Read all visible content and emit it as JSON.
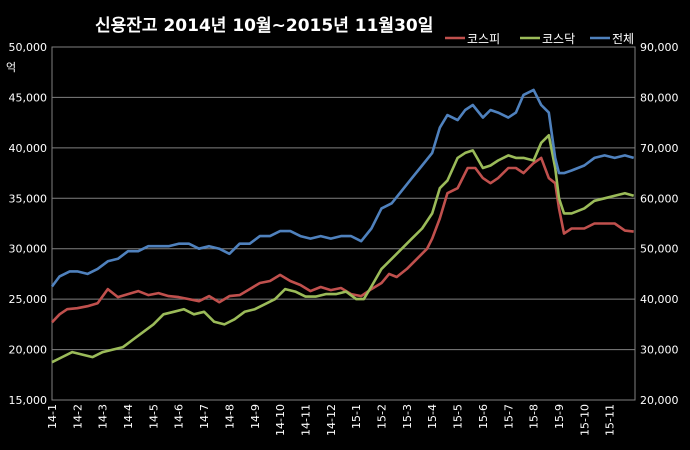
{
  "chart_data": {
    "type": "line",
    "title": "신용잔고  2014년 10월~2015년 11월30일",
    "y_unit_label": "억",
    "y_left": {
      "min": 15000,
      "max": 50000,
      "step": 5000,
      "tick_labels": [
        "15,000",
        "20,000",
        "25,000",
        "30,000",
        "35,000",
        "40,000",
        "45,000",
        "50,000"
      ]
    },
    "y_right": {
      "min": 20000,
      "max": 90000,
      "step": 10000,
      "tick_labels": [
        "20,000",
        "30,000",
        "40,000",
        "50,000",
        "60,000",
        "70,000",
        "80,000",
        "90,000"
      ]
    },
    "x_tick_labels": [
      "14-1",
      "14-2",
      "14-3",
      "14-4",
      "14-5",
      "14-6",
      "14-7",
      "14-8",
      "14-9",
      "14-10",
      "14-11",
      "14-12",
      "15-1",
      "15-2",
      "15-3",
      "15-4",
      "15-5",
      "15-6",
      "15-7",
      "15-8",
      "15-9",
      "15-10",
      "15-11"
    ],
    "grid": true,
    "legend_position": "top-right",
    "series": [
      {
        "name": "코스피",
        "axis": "left",
        "color": "#c0504d",
        "x": [
          0,
          0.3,
          0.6,
          1,
          1.4,
          1.8,
          2.2,
          2.6,
          3,
          3.4,
          3.8,
          4.2,
          4.6,
          5,
          5.4,
          5.8,
          6.2,
          6.6,
          7,
          7.4,
          7.8,
          8.2,
          8.6,
          9,
          9.4,
          9.8,
          10.2,
          10.6,
          11,
          11.4,
          11.8,
          12.2,
          12.6,
          13,
          13.3,
          13.6,
          14,
          14.4,
          14.8,
          15,
          15.3,
          15.6,
          16,
          16.4,
          16.7,
          17,
          17.3,
          17.6,
          18,
          18.3,
          18.6,
          19,
          19.3,
          19.6,
          19.85,
          20,
          20.2,
          20.5,
          21,
          21.4,
          21.8,
          22.2,
          22.6,
          22.95
        ],
        "y": [
          22700,
          23500,
          24000,
          24100,
          24300,
          24600,
          26000,
          25200,
          25500,
          25800,
          25400,
          25600,
          25300,
          25200,
          25000,
          24800,
          25300,
          24700,
          25300,
          25400,
          26000,
          26600,
          26800,
          27400,
          26800,
          26400,
          25800,
          26200,
          25900,
          26100,
          25500,
          25300,
          26000,
          26600,
          27500,
          27200,
          28000,
          29000,
          30000,
          31000,
          33000,
          35500,
          36000,
          38000,
          38000,
          37000,
          36500,
          37000,
          38000,
          38000,
          37500,
          38500,
          39000,
          37000,
          36500,
          34000,
          31500,
          32000,
          32000,
          32500,
          32500,
          32500,
          31800,
          31700
        ]
      },
      {
        "name": "코스닥",
        "axis": "right",
        "color": "#9bbb59",
        "x": [
          0,
          0.4,
          0.8,
          1.2,
          1.6,
          2,
          2.4,
          2.8,
          3.2,
          3.6,
          4,
          4.4,
          4.8,
          5.2,
          5.6,
          6,
          6.4,
          6.8,
          7.2,
          7.6,
          8,
          8.4,
          8.8,
          9.2,
          9.6,
          10,
          10.4,
          10.8,
          11.2,
          11.6,
          12,
          12.3,
          12.6,
          13,
          13.4,
          13.8,
          14.2,
          14.6,
          15,
          15.3,
          15.6,
          16,
          16.3,
          16.6,
          17,
          17.3,
          17.6,
          18,
          18.3,
          18.6,
          19,
          19.3,
          19.6,
          19.85,
          20,
          20.2,
          20.5,
          21,
          21.4,
          21.8,
          22.2,
          22.6,
          22.95
        ],
        "y": [
          27500,
          28500,
          29500,
          29000,
          28500,
          29500,
          30000,
          30500,
          32000,
          33500,
          35000,
          37000,
          37500,
          38000,
          37000,
          37500,
          35500,
          35000,
          36000,
          37500,
          38000,
          39000,
          40000,
          42000,
          41500,
          40500,
          40500,
          41000,
          41000,
          41500,
          40000,
          40000,
          42500,
          46000,
          48000,
          50000,
          52000,
          54000,
          57000,
          62000,
          63500,
          68000,
          69000,
          69500,
          66000,
          66500,
          67500,
          68500,
          68000,
          68000,
          67500,
          71000,
          72500,
          66000,
          60000,
          57000,
          57000,
          58000,
          59500,
          60000,
          60500,
          61000,
          60500
        ]
      },
      {
        "name": "전체",
        "axis": "right",
        "color": "#4f81bd",
        "x": [
          0,
          0.3,
          0.7,
          1,
          1.4,
          1.8,
          2.2,
          2.6,
          3,
          3.4,
          3.8,
          4.2,
          4.6,
          5,
          5.4,
          5.8,
          6.2,
          6.6,
          7,
          7.4,
          7.8,
          8.2,
          8.6,
          9,
          9.4,
          9.8,
          10.2,
          10.6,
          11,
          11.4,
          11.8,
          12.2,
          12.6,
          13,
          13.4,
          13.8,
          14.2,
          14.6,
          15,
          15.3,
          15.6,
          16,
          16.3,
          16.6,
          17,
          17.3,
          17.6,
          18,
          18.3,
          18.6,
          19,
          19.3,
          19.6,
          19.85,
          20,
          20.2,
          20.5,
          21,
          21.4,
          21.8,
          22.2,
          22.6,
          22.95
        ],
        "y": [
          42500,
          44500,
          45500,
          45500,
          45000,
          46000,
          47500,
          48000,
          49500,
          49500,
          50500,
          50500,
          50500,
          51000,
          51000,
          50000,
          50500,
          50000,
          49000,
          51000,
          51000,
          52500,
          52500,
          53500,
          53500,
          52500,
          52000,
          52500,
          52000,
          52500,
          52500,
          51500,
          54000,
          58000,
          59000,
          61500,
          64000,
          66500,
          69000,
          74000,
          76500,
          75500,
          77500,
          78500,
          76000,
          77500,
          77000,
          76000,
          77000,
          80500,
          81500,
          78500,
          77000,
          68000,
          65000,
          65000,
          65500,
          66500,
          68000,
          68500,
          68000,
          68500,
          68000
        ]
      }
    ]
  }
}
